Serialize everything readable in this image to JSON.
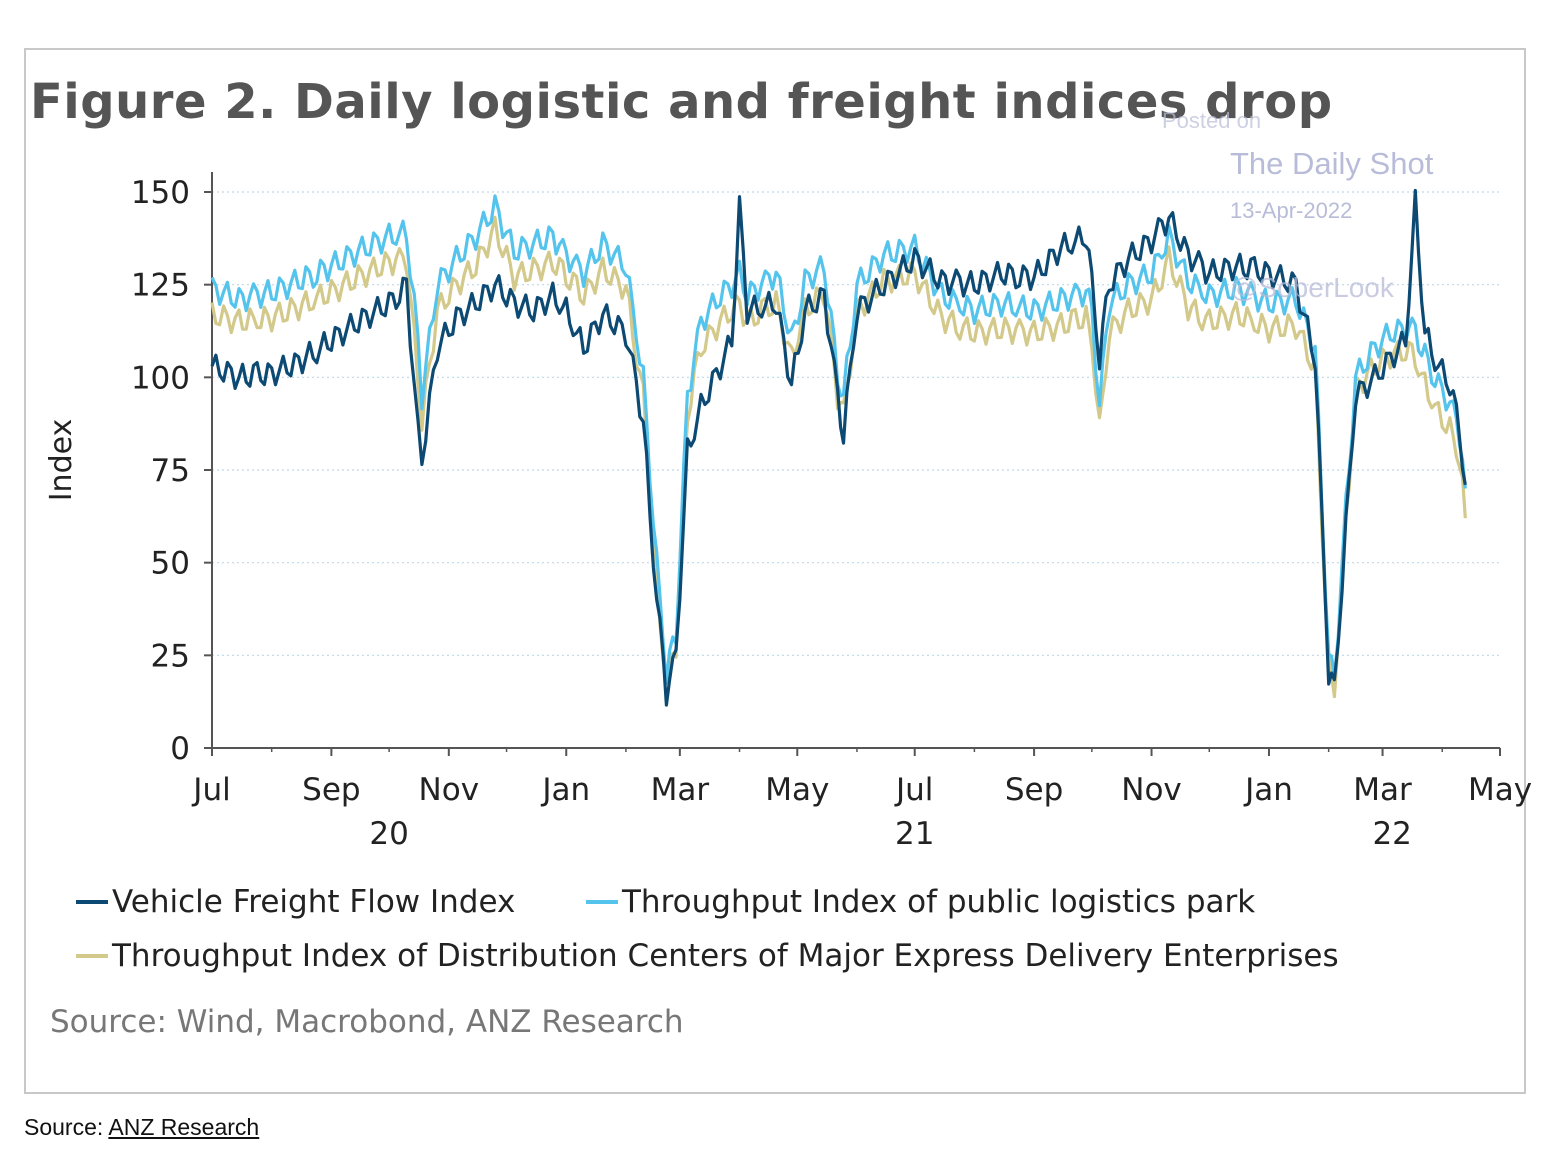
{
  "chart_data": {
    "type": "line",
    "title": "Figure 2. Daily logistic and freight indices drop",
    "ylabel": "Index",
    "ylim": [
      0,
      150
    ],
    "yticks": [
      0,
      25,
      50,
      75,
      100,
      125,
      150
    ],
    "xlim": [
      "2020-07-01",
      "2022-05-01"
    ],
    "xticks": [
      {
        "date": "2020-07-01",
        "label": "Jul"
      },
      {
        "date": "2020-09-01",
        "label": "Sep"
      },
      {
        "date": "2020-11-01",
        "label": "Nov"
      },
      {
        "date": "2021-01-01",
        "label": "Jan"
      },
      {
        "date": "2021-03-01",
        "label": "Mar"
      },
      {
        "date": "2021-05-01",
        "label": "May"
      },
      {
        "date": "2021-07-01",
        "label": "Jul"
      },
      {
        "date": "2021-09-01",
        "label": "Sep"
      },
      {
        "date": "2021-11-01",
        "label": "Nov"
      },
      {
        "date": "2022-01-01",
        "label": "Jan"
      },
      {
        "date": "2022-03-01",
        "label": "Mar"
      },
      {
        "date": "2022-05-01",
        "label": "May"
      }
    ],
    "year_labels": [
      {
        "date": "2020-10-01",
        "label": "20"
      },
      {
        "date": "2021-07-01",
        "label": "21"
      },
      {
        "date": "2022-03-06",
        "label": "22"
      }
    ],
    "grid": true,
    "legend_position": "bottom",
    "series": [
      {
        "name": "Vehicle Freight Flow Index",
        "color": "#0d4a73",
        "points": [
          [
            "2020-07-01",
            103
          ],
          [
            "2020-07-15",
            100
          ],
          [
            "2020-08-01",
            101
          ],
          [
            "2020-08-15",
            104
          ],
          [
            "2020-09-01",
            110
          ],
          [
            "2020-09-15",
            115
          ],
          [
            "2020-10-01",
            120
          ],
          [
            "2020-10-10",
            125
          ],
          [
            "2020-10-16",
            85
          ],
          [
            "2020-10-18",
            78
          ],
          [
            "2020-10-26",
            108
          ],
          [
            "2020-11-05",
            116
          ],
          [
            "2020-11-15",
            120
          ],
          [
            "2020-11-25",
            125
          ],
          [
            "2020-12-05",
            120
          ],
          [
            "2020-12-15",
            118
          ],
          [
            "2020-12-25",
            122
          ],
          [
            "2021-01-01",
            118
          ],
          [
            "2021-01-10",
            108
          ],
          [
            "2021-01-20",
            117
          ],
          [
            "2021-02-01",
            112
          ],
          [
            "2021-02-10",
            88
          ],
          [
            "2021-02-17",
            40
          ],
          [
            "2021-02-22",
            15
          ],
          [
            "2021-02-27",
            25
          ],
          [
            "2021-03-05",
            80
          ],
          [
            "2021-03-12",
            92
          ],
          [
            "2021-03-22",
            103
          ],
          [
            "2021-03-28",
            110
          ],
          [
            "2021-04-01",
            146
          ],
          [
            "2021-04-05",
            118
          ],
          [
            "2021-04-20",
            120
          ],
          [
            "2021-04-28",
            98
          ],
          [
            "2021-05-05",
            118
          ],
          [
            "2021-05-15",
            122
          ],
          [
            "2021-05-22",
            95
          ],
          [
            "2021-05-25",
            85
          ],
          [
            "2021-06-01",
            118
          ],
          [
            "2021-06-15",
            125
          ],
          [
            "2021-07-01",
            132
          ],
          [
            "2021-07-15",
            126
          ],
          [
            "2021-08-01",
            125
          ],
          [
            "2021-08-15",
            128
          ],
          [
            "2021-09-01",
            127
          ],
          [
            "2021-09-15",
            135
          ],
          [
            "2021-09-28",
            138
          ],
          [
            "2021-10-01",
            125
          ],
          [
            "2021-10-05",
            105
          ],
          [
            "2021-10-10",
            125
          ],
          [
            "2021-10-20",
            132
          ],
          [
            "2021-11-01",
            137
          ],
          [
            "2021-11-10",
            143
          ],
          [
            "2021-11-20",
            133
          ],
          [
            "2021-12-01",
            128
          ],
          [
            "2021-12-15",
            130
          ],
          [
            "2022-01-01",
            128
          ],
          [
            "2022-01-15",
            125
          ],
          [
            "2022-01-25",
            105
          ],
          [
            "2022-02-01",
            20
          ],
          [
            "2022-02-04",
            15
          ],
          [
            "2022-02-10",
            60
          ],
          [
            "2022-02-15",
            95
          ],
          [
            "2022-02-25",
            100
          ],
          [
            "2022-03-05",
            105
          ],
          [
            "2022-03-13",
            110
          ],
          [
            "2022-03-18",
            147
          ],
          [
            "2022-03-23",
            112
          ],
          [
            "2022-03-30",
            103
          ],
          [
            "2022-04-05",
            98
          ],
          [
            "2022-04-10",
            85
          ],
          [
            "2022-04-13",
            71
          ]
        ]
      },
      {
        "name": "Throughput Index of public logistics park",
        "color": "#55c4ec",
        "points": [
          [
            "2020-07-01",
            124
          ],
          [
            "2020-07-15",
            121
          ],
          [
            "2020-08-01",
            123
          ],
          [
            "2020-08-15",
            126
          ],
          [
            "2020-09-01",
            130
          ],
          [
            "2020-09-15",
            134
          ],
          [
            "2020-10-01",
            138
          ],
          [
            "2020-10-10",
            139
          ],
          [
            "2020-10-16",
            110
          ],
          [
            "2020-10-18",
            95
          ],
          [
            "2020-10-26",
            125
          ],
          [
            "2020-11-05",
            132
          ],
          [
            "2020-11-15",
            138
          ],
          [
            "2020-11-25",
            146
          ],
          [
            "2020-12-05",
            134
          ],
          [
            "2020-12-15",
            136
          ],
          [
            "2020-12-25",
            138
          ],
          [
            "2021-01-01",
            133
          ],
          [
            "2021-01-10",
            128
          ],
          [
            "2021-01-20",
            136
          ],
          [
            "2021-02-01",
            130
          ],
          [
            "2021-02-10",
            100
          ],
          [
            "2021-02-17",
            50
          ],
          [
            "2021-02-22",
            20
          ],
          [
            "2021-02-27",
            30
          ],
          [
            "2021-03-05",
            95
          ],
          [
            "2021-03-12",
            115
          ],
          [
            "2021-03-22",
            122
          ],
          [
            "2021-03-28",
            125
          ],
          [
            "2021-04-01",
            128
          ],
          [
            "2021-04-05",
            122
          ],
          [
            "2021-04-20",
            128
          ],
          [
            "2021-04-28",
            110
          ],
          [
            "2021-05-05",
            126
          ],
          [
            "2021-05-15",
            130
          ],
          [
            "2021-05-22",
            100
          ],
          [
            "2021-05-25",
            95
          ],
          [
            "2021-06-01",
            125
          ],
          [
            "2021-06-15",
            133
          ],
          [
            "2021-07-01",
            135
          ],
          [
            "2021-07-15",
            122
          ],
          [
            "2021-08-01",
            118
          ],
          [
            "2021-08-15",
            120
          ],
          [
            "2021-09-01",
            118
          ],
          [
            "2021-09-15",
            121
          ],
          [
            "2021-09-28",
            123
          ],
          [
            "2021-10-01",
            118
          ],
          [
            "2021-10-05",
            92
          ],
          [
            "2021-10-10",
            120
          ],
          [
            "2021-10-20",
            125
          ],
          [
            "2021-11-01",
            128
          ],
          [
            "2021-11-10",
            138
          ],
          [
            "2021-11-20",
            126
          ],
          [
            "2021-12-01",
            122
          ],
          [
            "2021-12-15",
            124
          ],
          [
            "2022-01-01",
            120
          ],
          [
            "2022-01-15",
            121
          ],
          [
            "2022-01-25",
            108
          ],
          [
            "2022-02-01",
            25
          ],
          [
            "2022-02-04",
            18
          ],
          [
            "2022-02-10",
            65
          ],
          [
            "2022-02-15",
            100
          ],
          [
            "2022-02-25",
            108
          ],
          [
            "2022-03-05",
            112
          ],
          [
            "2022-03-13",
            113
          ],
          [
            "2022-03-18",
            113
          ],
          [
            "2022-03-23",
            106
          ],
          [
            "2022-03-30",
            98
          ],
          [
            "2022-04-05",
            93
          ],
          [
            "2022-04-10",
            85
          ],
          [
            "2022-04-13",
            70
          ]
        ]
      },
      {
        "name": "Throughput Index of Distribution Centers of Major Express Delivery Enterprises",
        "color": "#d3c98a",
        "points": [
          [
            "2020-07-01",
            117
          ],
          [
            "2020-07-15",
            115
          ],
          [
            "2020-08-01",
            116
          ],
          [
            "2020-08-15",
            119
          ],
          [
            "2020-09-01",
            123
          ],
          [
            "2020-09-15",
            127
          ],
          [
            "2020-10-01",
            131
          ],
          [
            "2020-10-10",
            132
          ],
          [
            "2020-10-16",
            100
          ],
          [
            "2020-10-18",
            88
          ],
          [
            "2020-10-26",
            118
          ],
          [
            "2020-11-05",
            125
          ],
          [
            "2020-11-15",
            130
          ],
          [
            "2020-11-25",
            140
          ],
          [
            "2020-12-05",
            127
          ],
          [
            "2020-12-15",
            129
          ],
          [
            "2020-12-25",
            131
          ],
          [
            "2021-01-01",
            127
          ],
          [
            "2021-01-10",
            122
          ],
          [
            "2021-01-20",
            129
          ],
          [
            "2021-02-01",
            124
          ],
          [
            "2021-02-10",
            95
          ],
          [
            "2021-02-17",
            45
          ],
          [
            "2021-02-22",
            18
          ],
          [
            "2021-02-27",
            28
          ],
          [
            "2021-03-05",
            90
          ],
          [
            "2021-03-12",
            108
          ],
          [
            "2021-03-22",
            115
          ],
          [
            "2021-03-28",
            118
          ],
          [
            "2021-04-01",
            120
          ],
          [
            "2021-04-05",
            115
          ],
          [
            "2021-04-20",
            120
          ],
          [
            "2021-04-28",
            105
          ],
          [
            "2021-05-05",
            118
          ],
          [
            "2021-05-15",
            123
          ],
          [
            "2021-05-22",
            95
          ],
          [
            "2021-05-25",
            90
          ],
          [
            "2021-06-01",
            118
          ],
          [
            "2021-06-15",
            126
          ],
          [
            "2021-07-01",
            128
          ],
          [
            "2021-07-15",
            116
          ],
          [
            "2021-08-01",
            112
          ],
          [
            "2021-08-15",
            113
          ],
          [
            "2021-09-01",
            112
          ],
          [
            "2021-09-15",
            114
          ],
          [
            "2021-09-28",
            116
          ],
          [
            "2021-10-01",
            110
          ],
          [
            "2021-10-05",
            86
          ],
          [
            "2021-10-10",
            112
          ],
          [
            "2021-10-20",
            118
          ],
          [
            "2021-11-01",
            121
          ],
          [
            "2021-11-10",
            132
          ],
          [
            "2021-11-20",
            119
          ],
          [
            "2021-12-01",
            115
          ],
          [
            "2021-12-15",
            117
          ],
          [
            "2022-01-01",
            113
          ],
          [
            "2022-01-15",
            114
          ],
          [
            "2022-01-25",
            102
          ],
          [
            "2022-02-01",
            22
          ],
          [
            "2022-02-04",
            16
          ],
          [
            "2022-02-10",
            62
          ],
          [
            "2022-02-15",
            97
          ],
          [
            "2022-02-25",
            103
          ],
          [
            "2022-03-05",
            106
          ],
          [
            "2022-03-13",
            107
          ],
          [
            "2022-03-18",
            105
          ],
          [
            "2022-03-23",
            98
          ],
          [
            "2022-03-30",
            90
          ],
          [
            "2022-04-05",
            86
          ],
          [
            "2022-04-10",
            78
          ],
          [
            "2022-04-13",
            62
          ]
        ]
      }
    ]
  },
  "watermark": {
    "line1": "Posted on",
    "line2": "The Daily Shot",
    "line3": "13-Apr-2022",
    "line4": "@SoberLook"
  },
  "source_note": "Source: Wind, Macrobond, ANZ Research",
  "footer": {
    "prefix": "Source:",
    "link_text": "ANZ Research"
  }
}
